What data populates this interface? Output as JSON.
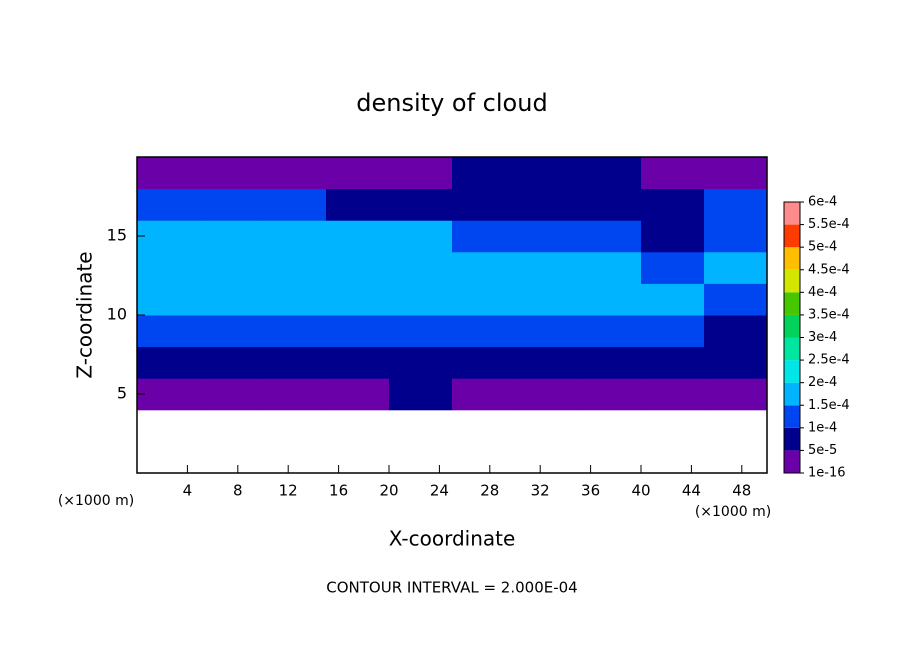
{
  "chart_data": {
    "type": "contour",
    "title": "density of cloud",
    "x_label": "X-coordinate",
    "y_label": "Z-coordinate",
    "x_unit_label": "(×1000 m)",
    "y_unit_label": "(×1000 m)",
    "footer": "CONTOUR INTERVAL = 2.000E-04",
    "xlim": [
      0,
      50
    ],
    "ylim": [
      0,
      20
    ],
    "xticks": [
      4,
      8,
      12,
      16,
      20,
      24,
      28,
      32,
      36,
      40,
      44,
      48
    ],
    "yticks": [
      5,
      10,
      15
    ],
    "x": [
      2.5,
      7.5,
      12.5,
      17.5,
      22.5,
      27.5,
      32.5,
      37.5,
      42.5,
      47.5
    ],
    "y": [
      1,
      3,
      5,
      7,
      9,
      11,
      13,
      15,
      17,
      19
    ],
    "z": [
      [
        null,
        null,
        null,
        null,
        null,
        null,
        null,
        null,
        null,
        null
      ],
      [
        null,
        null,
        null,
        null,
        null,
        null,
        null,
        null,
        null,
        null
      ],
      [
        3e-05,
        3e-05,
        3e-05,
        4e-05,
        6e-05,
        3e-05,
        4e-05,
        3e-05,
        3e-05,
        3e-05
      ],
      [
        7e-05,
        8e-05,
        9e-05,
        7e-05,
        7e-05,
        8e-05,
        9e-05,
        8e-05,
        7e-05,
        5e-05
      ],
      [
        0.00012,
        0.00013,
        0.00013,
        0.00011,
        0.00012,
        0.00013,
        0.00013,
        0.00012,
        0.00011,
        9e-05
      ],
      [
        0.00016,
        0.00017,
        0.00017,
        0.00016,
        0.00018,
        0.00017,
        0.00018,
        0.00017,
        0.00016,
        0.00014
      ],
      [
        0.00017,
        0.00018,
        0.00017,
        0.00017,
        0.00018,
        0.00016,
        0.00018,
        0.00015,
        0.00013,
        0.00016
      ],
      [
        0.00016,
        0.00017,
        0.00017,
        0.00016,
        0.00015,
        0.00013,
        0.00012,
        0.00014,
        9e-05,
        0.00012
      ],
      [
        0.00011,
        0.00012,
        0.00011,
        8e-05,
        6e-05,
        9e-05,
        8e-05,
        6e-05,
        9e-05,
        0.0001
      ],
      [
        3e-05,
        3e-05,
        4e-05,
        3e-05,
        2e-05,
        5e-05,
        6e-05,
        5e-05,
        3e-05,
        2e-05
      ]
    ],
    "colorbar": {
      "levels": [
        {
          "value": 1e-16,
          "label": "1e-16"
        },
        {
          "value": 5e-05,
          "label": "5e-5"
        },
        {
          "value": 0.0001,
          "label": "1e-4"
        },
        {
          "value": 0.00015,
          "label": "1.5e-4"
        },
        {
          "value": 0.0002,
          "label": "2e-4"
        },
        {
          "value": 0.00025,
          "label": "2.5e-4"
        },
        {
          "value": 0.0003,
          "label": "3e-4"
        },
        {
          "value": 0.00035,
          "label": "3.5e-4"
        },
        {
          "value": 0.0004,
          "label": "4e-4"
        },
        {
          "value": 0.00045,
          "label": "4.5e-4"
        },
        {
          "value": 0.0005,
          "label": "5e-4"
        },
        {
          "value": 0.00055,
          "label": "5.5e-4"
        },
        {
          "value": 0.0006,
          "label": "6e-4"
        }
      ],
      "colors": [
        "#6a00a8",
        "#00008c",
        "#0046f0",
        "#00b4ff",
        "#00e6e6",
        "#00e6a0",
        "#00d25a",
        "#46c800",
        "#d2e600",
        "#ffbe00",
        "#ff3c00",
        "#ff8c8c"
      ]
    }
  }
}
